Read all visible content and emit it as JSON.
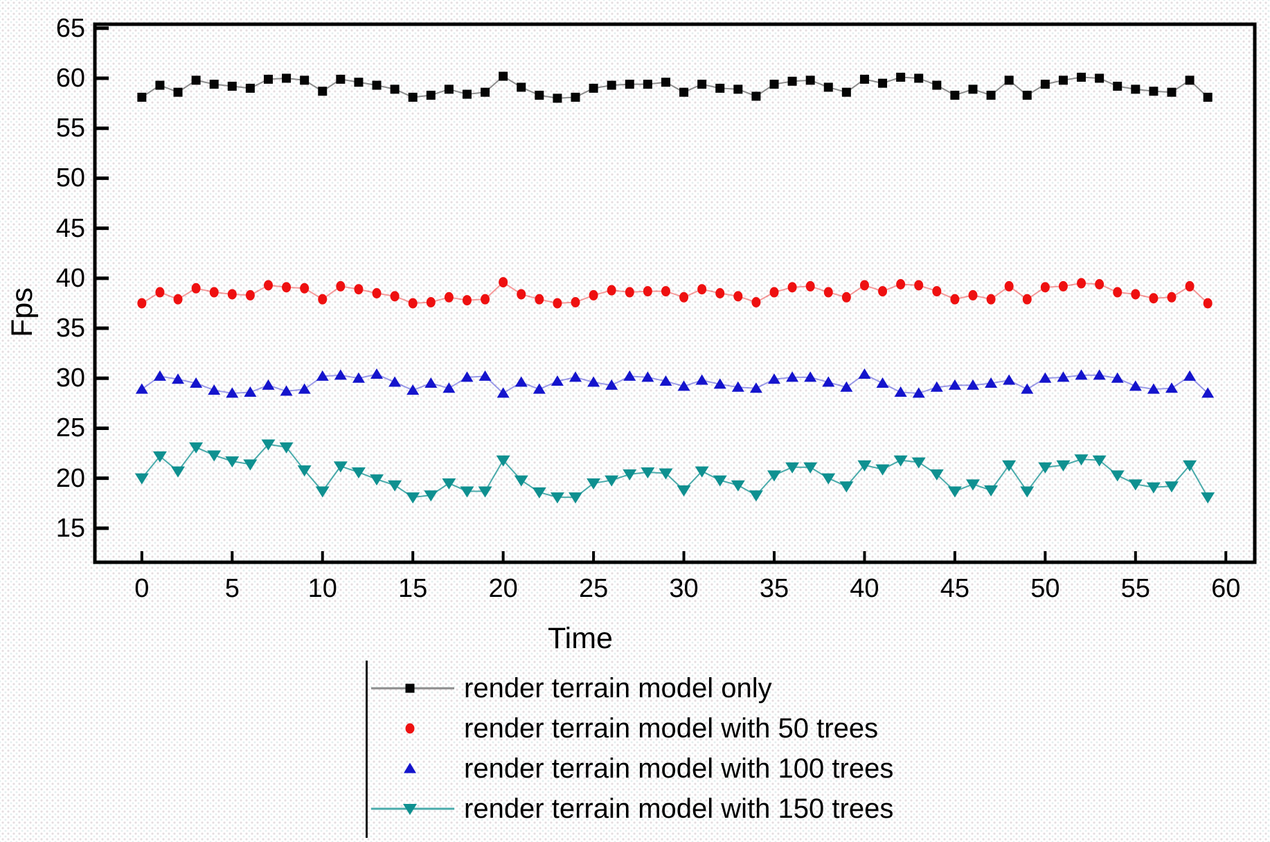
{
  "chart_data": {
    "type": "line",
    "title": "",
    "xlabel": "Time",
    "ylabel": "Fps",
    "xlim": [
      -2.6,
      61.6
    ],
    "ylim": [
      11.6,
      65.4
    ],
    "x_ticks": [
      0,
      5,
      10,
      15,
      20,
      25,
      30,
      35,
      40,
      45,
      50,
      55,
      60
    ],
    "y_ticks": [
      15,
      20,
      25,
      30,
      35,
      40,
      45,
      50,
      55,
      60,
      65
    ],
    "grid": false,
    "legend_position": "bottom",
    "x_start": 0,
    "x_step": 1,
    "series": [
      {
        "id": "terrain-only",
        "name": "render terrain model only",
        "marker": "square",
        "color": "#050505",
        "line_color": "#8c8c8c",
        "legend_shows_line": true,
        "values": [
          58.1,
          59.3,
          58.6,
          59.8,
          59.4,
          59.2,
          59.0,
          59.9,
          60.0,
          59.8,
          58.7,
          59.9,
          59.6,
          59.3,
          58.9,
          58.1,
          58.3,
          58.9,
          58.4,
          58.6,
          60.2,
          59.1,
          58.3,
          58.0,
          58.1,
          59.0,
          59.3,
          59.4,
          59.4,
          59.6,
          58.6,
          59.4,
          59.0,
          58.9,
          58.2,
          59.4,
          59.7,
          59.8,
          59.1,
          58.6,
          59.9,
          59.5,
          60.1,
          60.0,
          59.3,
          58.3,
          58.9,
          58.3,
          59.8,
          58.3,
          59.4,
          59.8,
          60.1,
          60.0,
          59.2,
          58.9,
          58.7,
          58.6,
          59.8,
          58.1
        ]
      },
      {
        "id": "terrain-50-trees",
        "name": "render terrain model with 50 trees",
        "marker": "circle",
        "color": "#ee1010",
        "line_color": "rgba(238,16,16,0.42)",
        "legend_shows_line": false,
        "values": [
          37.5,
          38.6,
          37.9,
          39.0,
          38.6,
          38.4,
          38.3,
          39.3,
          39.1,
          39.0,
          37.9,
          39.2,
          38.9,
          38.5,
          38.2,
          37.5,
          37.6,
          38.1,
          37.8,
          37.9,
          39.6,
          38.4,
          37.9,
          37.5,
          37.6,
          38.3,
          38.8,
          38.6,
          38.7,
          38.7,
          38.1,
          38.9,
          38.5,
          38.2,
          37.6,
          38.6,
          39.1,
          39.2,
          38.6,
          38.1,
          39.3,
          38.7,
          39.4,
          39.3,
          38.7,
          37.9,
          38.3,
          37.9,
          39.2,
          37.9,
          39.1,
          39.2,
          39.5,
          39.4,
          38.6,
          38.4,
          38.0,
          38.1,
          39.2,
          37.5
        ]
      },
      {
        "id": "terrain-100-trees",
        "name": "render terrain model with 100 trees",
        "marker": "triangle-up",
        "color": "#1414cc",
        "line_color": "rgba(20,20,204,0.42)",
        "legend_shows_line": false,
        "values": [
          28.9,
          30.2,
          29.9,
          29.5,
          28.8,
          28.5,
          28.6,
          29.3,
          28.7,
          28.9,
          30.2,
          30.3,
          30.0,
          30.4,
          29.6,
          28.8,
          29.5,
          29.0,
          30.1,
          30.2,
          28.5,
          29.6,
          28.9,
          29.7,
          30.1,
          29.6,
          29.3,
          30.2,
          30.1,
          29.7,
          29.2,
          29.8,
          29.4,
          29.1,
          29.0,
          29.9,
          30.1,
          30.1,
          29.6,
          29.1,
          30.4,
          29.5,
          28.6,
          28.5,
          29.1,
          29.3,
          29.3,
          29.5,
          29.8,
          28.9,
          30.0,
          30.1,
          30.3,
          30.3,
          30.0,
          29.2,
          28.9,
          29.0,
          30.2,
          28.5
        ]
      },
      {
        "id": "terrain-150-trees",
        "name": "render terrain model with 150 trees",
        "marker": "triangle-down",
        "color": "#0f9090",
        "line_color": "rgba(15,144,144,0.75)",
        "legend_shows_line": true,
        "values": [
          20.0,
          22.2,
          20.7,
          23.1,
          22.3,
          21.7,
          21.4,
          23.4,
          23.1,
          20.8,
          18.7,
          21.2,
          20.6,
          19.9,
          19.3,
          18.1,
          18.3,
          19.5,
          18.7,
          18.7,
          21.8,
          19.8,
          18.6,
          18.1,
          18.1,
          19.5,
          19.8,
          20.4,
          20.6,
          20.5,
          18.8,
          20.7,
          19.8,
          19.3,
          18.3,
          20.3,
          21.1,
          21.1,
          20.0,
          19.2,
          21.3,
          20.9,
          21.8,
          21.6,
          20.4,
          18.7,
          19.4,
          18.8,
          21.3,
          18.7,
          21.1,
          21.3,
          21.9,
          21.8,
          20.3,
          19.4,
          19.1,
          19.2,
          21.3,
          18.1
        ]
      }
    ]
  }
}
